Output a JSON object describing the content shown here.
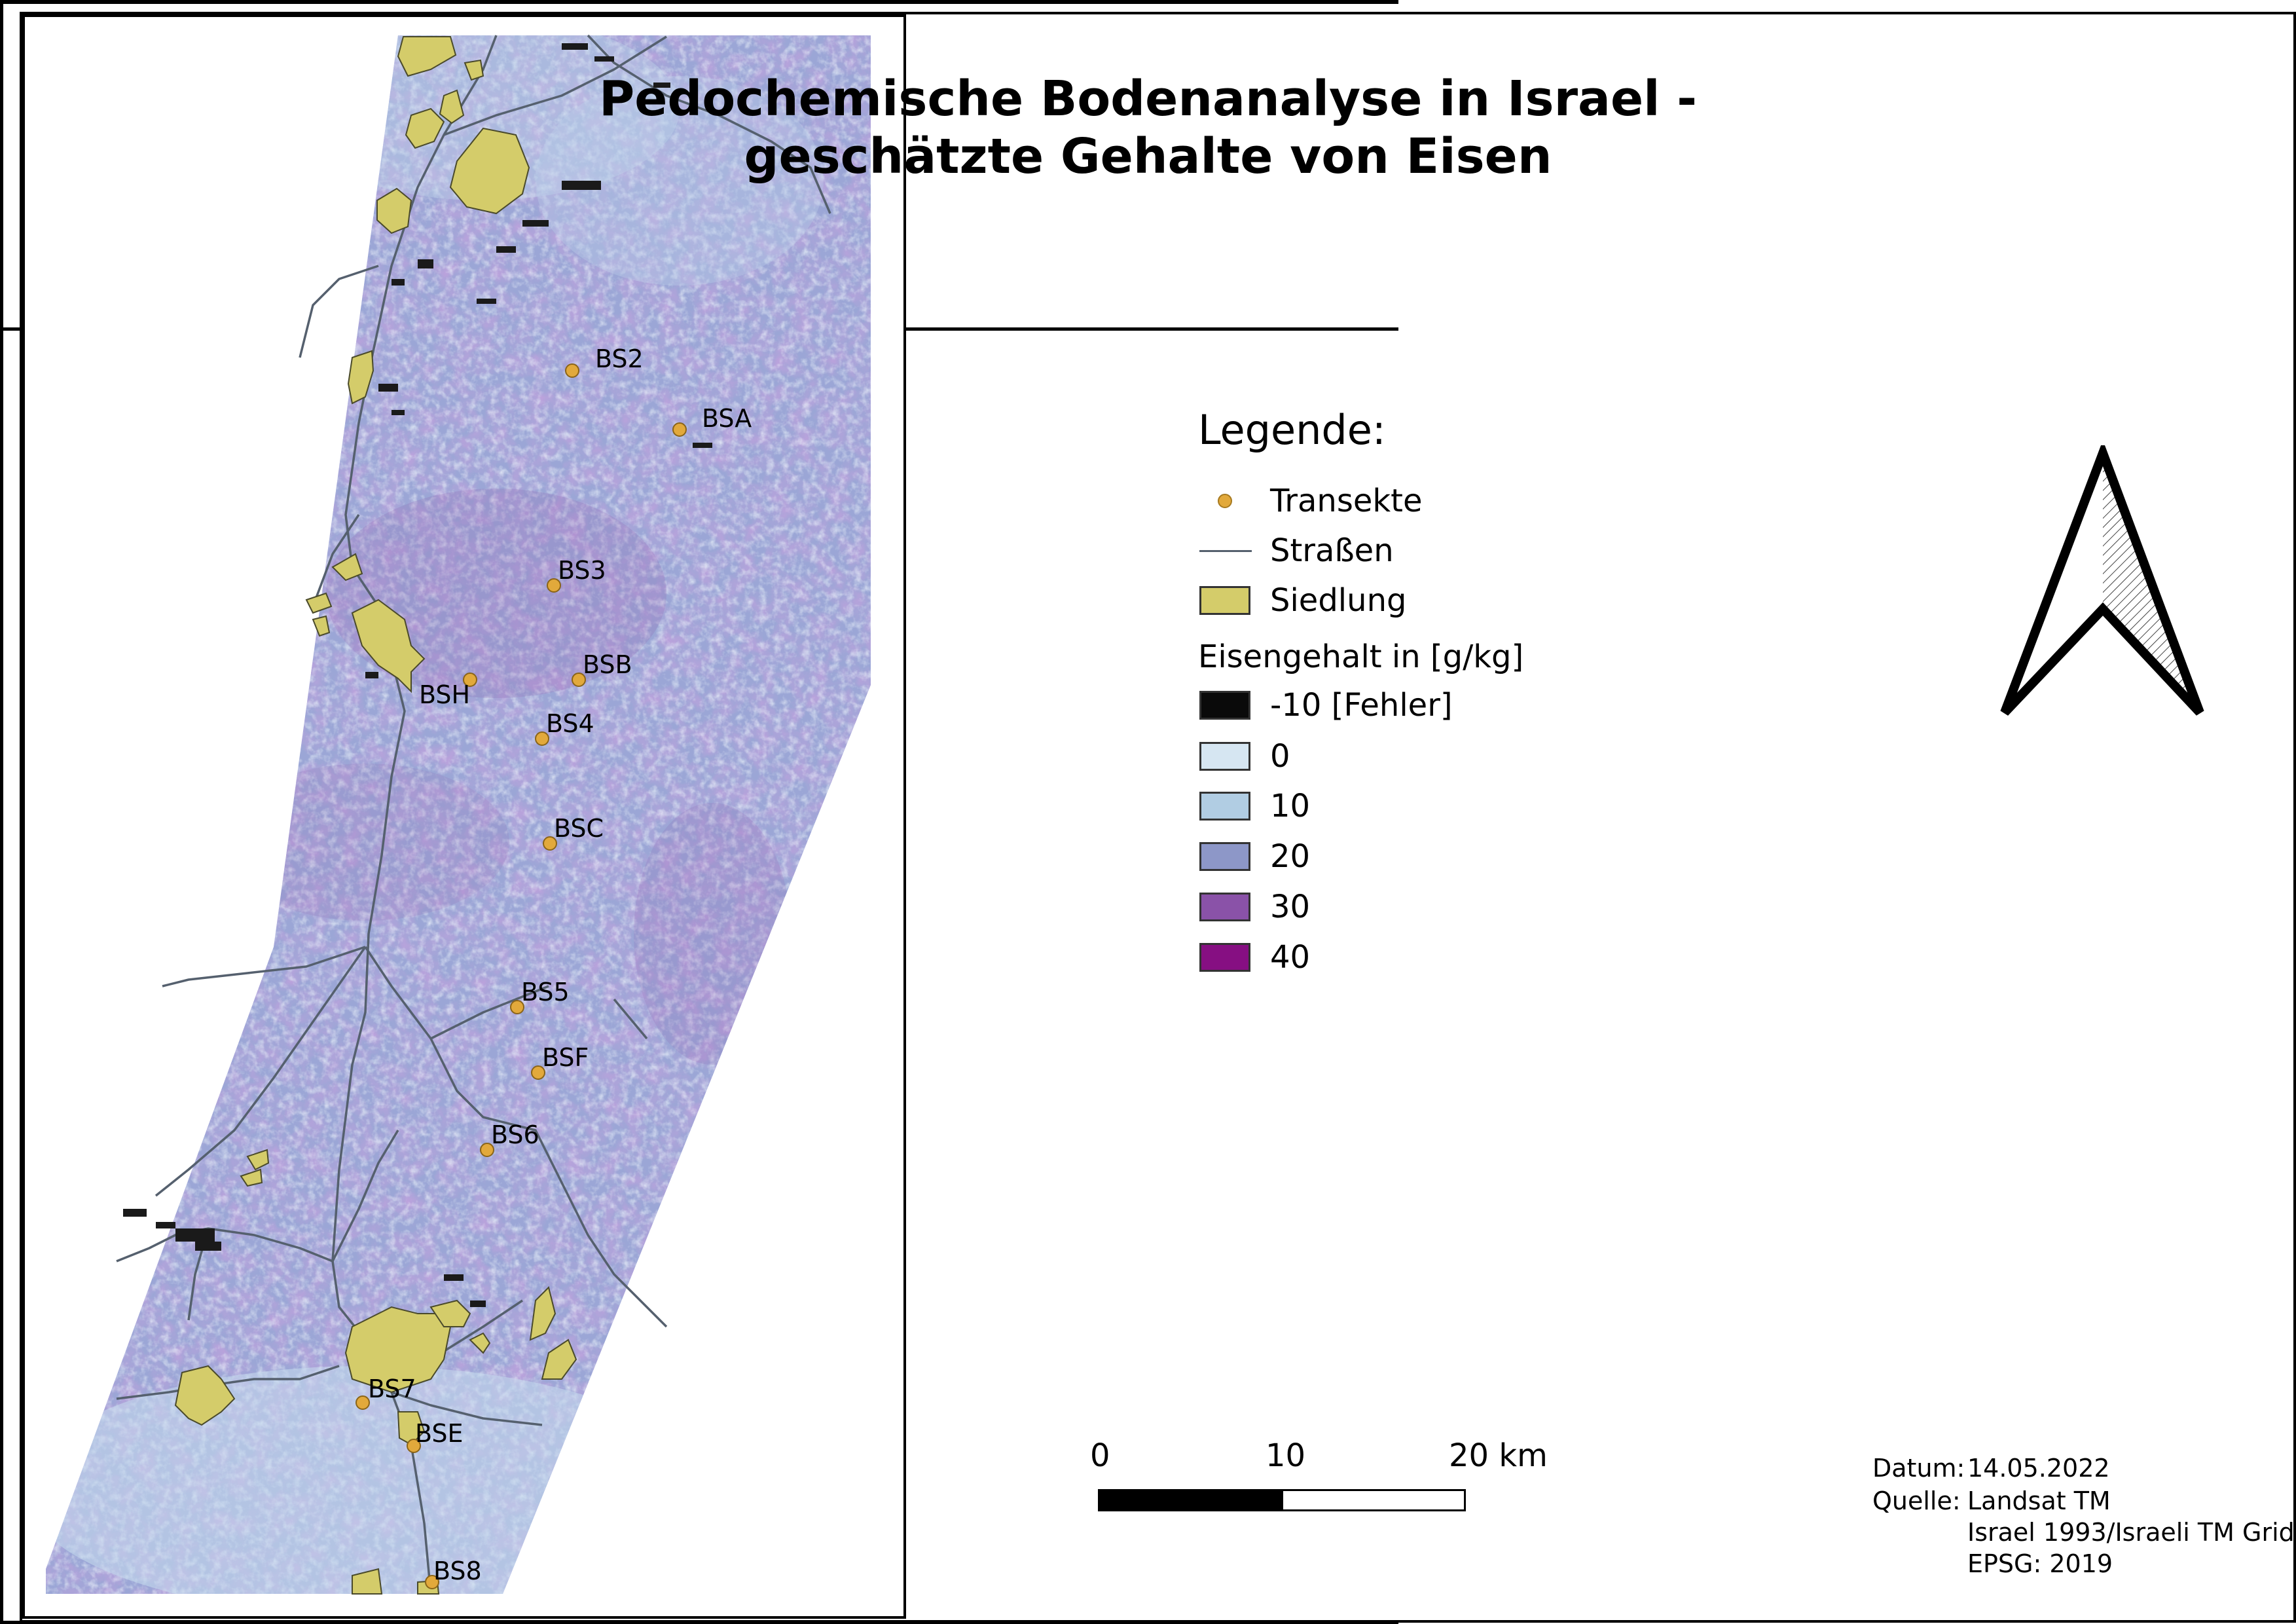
{
  "title": {
    "line1": "Pedochemische Bodenanalyse in Israel -",
    "line2": "geschätzte Gehalte von Eisen"
  },
  "legend": {
    "heading": "Legende:",
    "items": [
      {
        "label": "Transekte",
        "symbol": "point",
        "color": "#e2a93b"
      },
      {
        "label": "Straßen",
        "symbol": "line",
        "color": "#55606e"
      },
      {
        "label": "Siedlung",
        "symbol": "polygon",
        "color": "#d4cc6a"
      }
    ],
    "raster_heading": "Eisengehalt in [g/kg]",
    "raster_classes": [
      {
        "label": "-10 [Fehler]",
        "color": "#0a0a0a"
      },
      {
        "label": "0",
        "color": "#d6e6f2"
      },
      {
        "label": "10",
        "color": "#b1cde3"
      },
      {
        "label": "20",
        "color": "#8d97c8"
      },
      {
        "label": "30",
        "color": "#8a52a8"
      },
      {
        "label": "40",
        "color": "#860f82"
      }
    ]
  },
  "north_arrow": {
    "icon": "north-arrow-icon"
  },
  "scale_bar": {
    "labels": [
      "0",
      "10",
      "20 km"
    ]
  },
  "info": {
    "datum_label": "Datum:",
    "datum_value": "14.05.2022",
    "quelle_label": "Quelle:",
    "quelle_lines": [
      "Landsat TM",
      "Israel 1993/Israeli TM Grid",
      "EPSG: 2019"
    ]
  },
  "map": {
    "points": [
      {
        "label": "BS2"
      },
      {
        "label": "BSA"
      },
      {
        "label": "BS3"
      },
      {
        "label": "BSB"
      },
      {
        "label": "BSH"
      },
      {
        "label": "BS4"
      },
      {
        "label": "BSC"
      },
      {
        "label": "BS5"
      },
      {
        "label": "BSF"
      },
      {
        "label": "BS6"
      },
      {
        "label": "BS7"
      },
      {
        "label": "BSE"
      },
      {
        "label": "BS8"
      }
    ]
  }
}
